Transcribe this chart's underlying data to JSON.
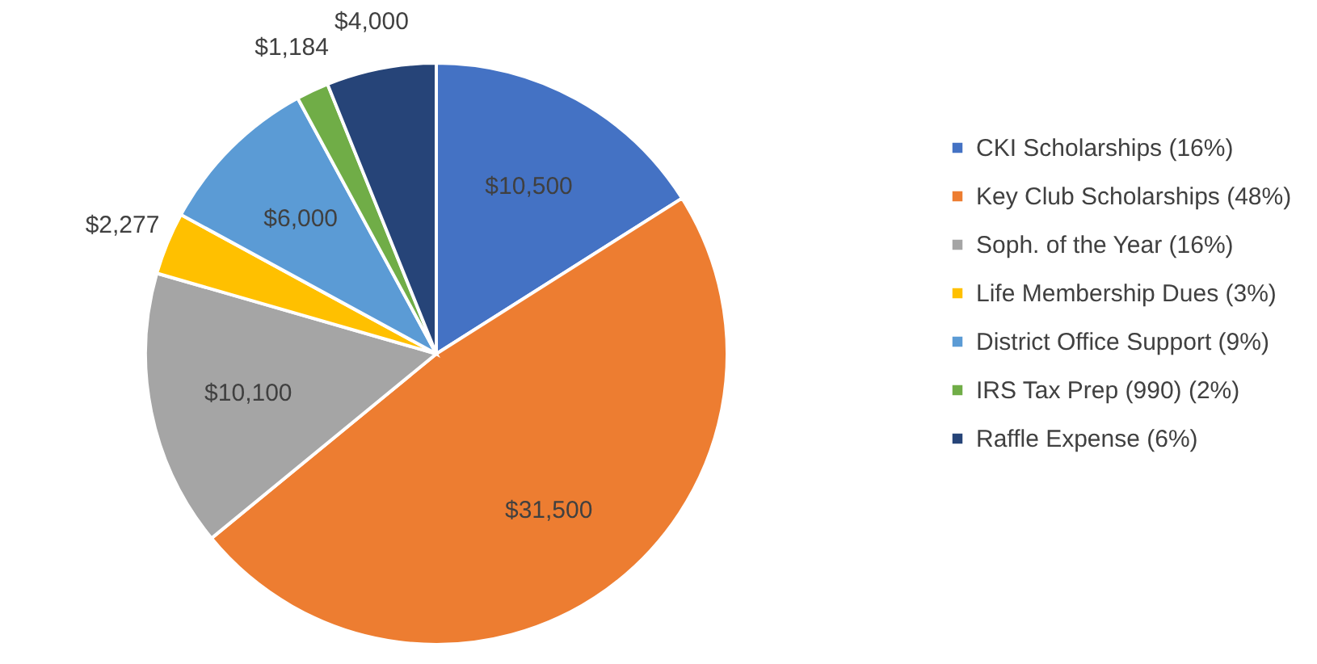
{
  "chart_data": {
    "type": "pie",
    "categories": [
      "CKI Scholarships (16%)",
      "Key Club Scholarships (48%)",
      "Soph. of the Year (16%)",
      "Life Membership Dues (3%)",
      "District Office Support (9%)",
      "IRS Tax Prep (990) (2%)",
      "Raffle Expense (6%)"
    ],
    "values": [
      10500,
      31500,
      10100,
      2277,
      6000,
      1184,
      4000
    ],
    "value_labels": [
      "$10,500",
      "$31,500",
      "$10,100",
      "$2,277",
      "$6,000",
      "$1,184",
      "$4,000"
    ],
    "colors": [
      "#4472c4",
      "#ed7d31",
      "#a5a5a5",
      "#ffc000",
      "#5b9bd5",
      "#70ad47",
      "#264478"
    ],
    "legend": "right"
  }
}
